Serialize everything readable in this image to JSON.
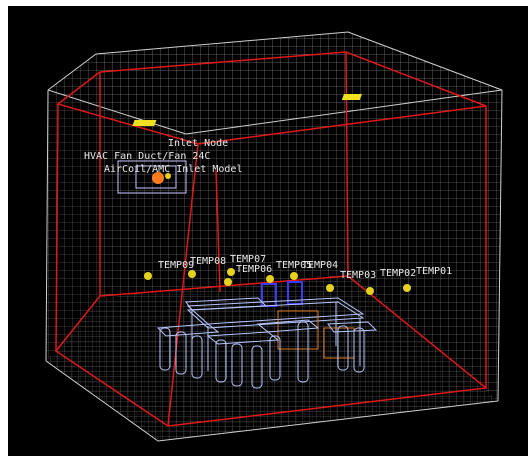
{
  "scene": {
    "labels": {
      "inlet_node": "Inlet Node",
      "hvac_fan": "HVAC Fan Duct/Fan 24C",
      "aircoil": "AirCoil/AMC Inlet Model"
    },
    "sensors": [
      {
        "label": "TEMP09"
      },
      {
        "label": "TEMP08"
      },
      {
        "label": "TEMP07"
      },
      {
        "label": "TEMP06"
      },
      {
        "label": "TEMP05"
      },
      {
        "label": "TEMP04"
      },
      {
        "label": "TEMP03"
      },
      {
        "label": "TEMP02"
      },
      {
        "label": "TEMP01"
      }
    ],
    "colors": {
      "background": "#000000",
      "grid": "#9a9a9a",
      "room_edge": "#e01818",
      "furniture": "#b8c8ff",
      "sensor": "#e6d21c",
      "inlet": "#ff7a1a",
      "vent": "#f0e020"
    }
  }
}
